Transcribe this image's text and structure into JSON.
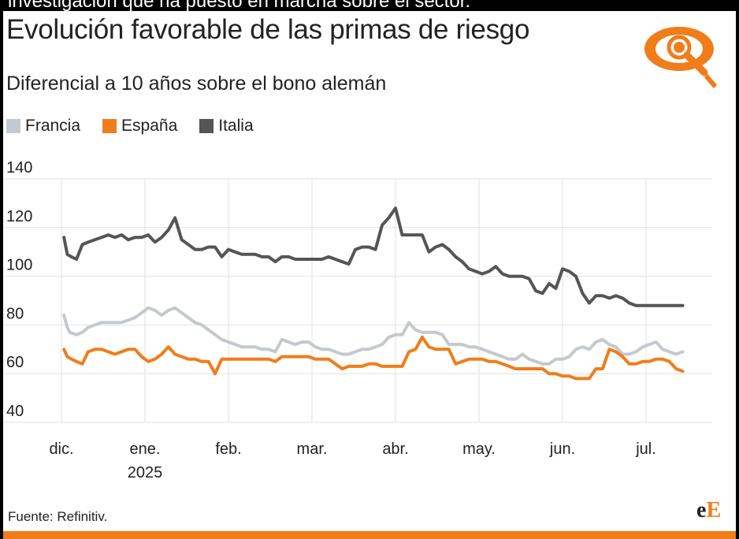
{
  "caption": "investigación que ha puesto en marcha sobre el sector.",
  "title": "Evolución favorable de las primas de riesgo",
  "subtitle": "Diferencial a 10 años sobre el bono alemán",
  "source": "Fuente: Refinitiv.",
  "brand": {
    "part1": "e",
    "part2": "E"
  },
  "colors": {
    "accent": "#f07d1a",
    "francia": "#c4c9cf",
    "espana": "#f07d1a",
    "italia": "#555555"
  },
  "chart_data": {
    "type": "line",
    "title": "Evolución favorable de las primas de riesgo",
    "subtitle": "Diferencial a 10 años sobre el bono alemán",
    "ylim": [
      40,
      140
    ],
    "yticks": [
      40,
      60,
      80,
      100,
      120,
      140
    ],
    "xlim": [
      0,
      7.6
    ],
    "xticks": [
      {
        "x": 0,
        "label": "dic.",
        "sub": ""
      },
      {
        "x": 1,
        "label": "ene.",
        "sub": "2025"
      },
      {
        "x": 2,
        "label": "feb.",
        "sub": ""
      },
      {
        "x": 3,
        "label": "mar.",
        "sub": ""
      },
      {
        "x": 4,
        "label": "abr.",
        "sub": ""
      },
      {
        "x": 5,
        "label": "may.",
        "sub": ""
      },
      {
        "x": 6,
        "label": "jun.",
        "sub": ""
      },
      {
        "x": 7,
        "label": "jul.",
        "sub": ""
      }
    ],
    "grid": true,
    "series": [
      {
        "name": "Francia",
        "color": "#c4c9cf",
        "x": [
          0.03,
          0.07,
          0.1,
          0.18,
          0.25,
          0.32,
          0.4,
          0.48,
          0.56,
          0.64,
          0.72,
          0.8,
          0.88,
          0.96,
          1.04,
          1.12,
          1.2,
          1.28,
          1.36,
          1.44,
          1.52,
          1.6,
          1.68,
          1.76,
          1.84,
          1.92,
          2.0,
          2.08,
          2.16,
          2.24,
          2.32,
          2.4,
          2.48,
          2.56,
          2.64,
          2.72,
          2.8,
          2.88,
          2.96,
          3.04,
          3.12,
          3.2,
          3.28,
          3.36,
          3.44,
          3.52,
          3.6,
          3.68,
          3.76,
          3.84,
          3.92,
          4.0,
          4.08,
          4.16,
          4.24,
          4.32,
          4.4,
          4.48,
          4.56,
          4.64,
          4.72,
          4.8,
          4.88,
          4.96,
          5.04,
          5.12,
          5.2,
          5.28,
          5.36,
          5.44,
          5.52,
          5.6,
          5.68,
          5.76,
          5.84,
          5.92,
          6.0,
          6.08,
          6.16,
          6.24,
          6.32,
          6.4,
          6.48,
          6.56,
          6.64,
          6.72,
          6.8,
          6.88,
          6.96,
          7.04,
          7.12,
          7.2,
          7.28,
          7.36,
          7.44
        ],
        "values": [
          84,
          79,
          77,
          76,
          77,
          79,
          80,
          81,
          81,
          81,
          81,
          82,
          83,
          85,
          87,
          86,
          84,
          86,
          87,
          85,
          83,
          81,
          80,
          78,
          76,
          74,
          73,
          72,
          71,
          71,
          71,
          70,
          70,
          69,
          74,
          73,
          72,
          73,
          73,
          71,
          70,
          70,
          69,
          68,
          68,
          69,
          70,
          70,
          71,
          72,
          75,
          76,
          76,
          81,
          78,
          77,
          77,
          77,
          76,
          72,
          72,
          72,
          71,
          71,
          70,
          69,
          68,
          67,
          66,
          66,
          68,
          66,
          65,
          64,
          64,
          66,
          66,
          67,
          70,
          71,
          70,
          73,
          74,
          72,
          71,
          68,
          68,
          69,
          71,
          72,
          73,
          70,
          69,
          68,
          69
        ]
      },
      {
        "name": "España",
        "color": "#f07d1a",
        "x": [
          0.03,
          0.07,
          0.12,
          0.18,
          0.25,
          0.32,
          0.4,
          0.48,
          0.56,
          0.64,
          0.72,
          0.8,
          0.88,
          0.96,
          1.04,
          1.12,
          1.2,
          1.28,
          1.36,
          1.44,
          1.52,
          1.6,
          1.68,
          1.76,
          1.84,
          1.92,
          2.0,
          2.08,
          2.16,
          2.24,
          2.32,
          2.4,
          2.48,
          2.56,
          2.64,
          2.72,
          2.8,
          2.88,
          2.96,
          3.04,
          3.12,
          3.2,
          3.28,
          3.36,
          3.44,
          3.52,
          3.6,
          3.68,
          3.76,
          3.84,
          3.92,
          4.0,
          4.08,
          4.16,
          4.24,
          4.32,
          4.4,
          4.48,
          4.56,
          4.64,
          4.72,
          4.8,
          4.88,
          4.96,
          5.04,
          5.12,
          5.2,
          5.28,
          5.36,
          5.44,
          5.52,
          5.6,
          5.68,
          5.76,
          5.84,
          5.92,
          6.0,
          6.08,
          6.16,
          6.24,
          6.32,
          6.4,
          6.48,
          6.56,
          6.64,
          6.72,
          6.8,
          6.88,
          6.96,
          7.04,
          7.12,
          7.2,
          7.28,
          7.36,
          7.44
        ],
        "values": [
          70,
          67,
          66,
          65,
          64,
          69,
          70,
          70,
          69,
          68,
          69,
          70,
          70,
          67,
          65,
          66,
          68,
          71,
          68,
          67,
          66,
          66,
          65,
          65,
          60,
          66,
          66,
          66,
          66,
          66,
          66,
          66,
          66,
          65,
          67,
          67,
          67,
          67,
          67,
          66,
          66,
          66,
          64,
          62,
          63,
          63,
          63,
          64,
          64,
          63,
          63,
          63,
          63,
          69,
          70,
          75,
          71,
          70,
          70,
          70,
          64,
          65,
          66,
          66,
          66,
          65,
          65,
          64,
          63,
          62,
          62,
          62,
          62,
          62,
          60,
          60,
          59,
          59,
          58,
          58,
          58,
          62,
          62,
          70,
          69,
          67,
          64,
          64,
          65,
          65,
          66,
          66,
          65,
          62,
          61
        ]
      },
      {
        "name": "Italia",
        "color": "#555555",
        "x": [
          0.03,
          0.07,
          0.12,
          0.18,
          0.25,
          0.32,
          0.4,
          0.48,
          0.56,
          0.64,
          0.72,
          0.8,
          0.88,
          0.96,
          1.04,
          1.12,
          1.2,
          1.28,
          1.36,
          1.44,
          1.52,
          1.6,
          1.68,
          1.76,
          1.84,
          1.92,
          2.0,
          2.08,
          2.16,
          2.24,
          2.32,
          2.4,
          2.48,
          2.56,
          2.64,
          2.72,
          2.8,
          2.88,
          2.96,
          3.04,
          3.12,
          3.2,
          3.28,
          3.36,
          3.44,
          3.52,
          3.6,
          3.68,
          3.76,
          3.84,
          3.92,
          4.0,
          4.08,
          4.16,
          4.24,
          4.32,
          4.4,
          4.48,
          4.56,
          4.64,
          4.72,
          4.8,
          4.88,
          4.96,
          5.04,
          5.12,
          5.2,
          5.28,
          5.36,
          5.44,
          5.52,
          5.6,
          5.68,
          5.76,
          5.84,
          5.92,
          6.0,
          6.08,
          6.16,
          6.24,
          6.32,
          6.4,
          6.48,
          6.56,
          6.64,
          6.72,
          6.8,
          6.88,
          6.96,
          7.04,
          7.12,
          7.2,
          7.28,
          7.36,
          7.44
        ],
        "values": [
          116,
          109,
          108,
          107,
          113,
          114,
          115,
          116,
          117,
          116,
          117,
          115,
          116,
          116,
          117,
          114,
          116,
          119,
          124,
          115,
          113,
          111,
          111,
          112,
          112,
          108,
          111,
          110,
          109,
          109,
          109,
          108,
          108,
          106,
          108,
          108,
          107,
          107,
          107,
          107,
          107,
          108,
          107,
          106,
          105,
          111,
          112,
          112,
          111,
          121,
          124,
          128,
          117,
          117,
          117,
          117,
          110,
          112,
          113,
          111,
          108,
          106,
          103,
          102,
          101,
          102,
          104,
          101,
          100,
          100,
          100,
          99,
          94,
          93,
          97,
          95,
          103,
          102,
          100,
          93,
          89,
          92,
          92,
          91,
          92,
          91,
          89,
          88,
          88,
          88,
          88,
          88,
          88,
          88,
          88
        ]
      }
    ]
  }
}
